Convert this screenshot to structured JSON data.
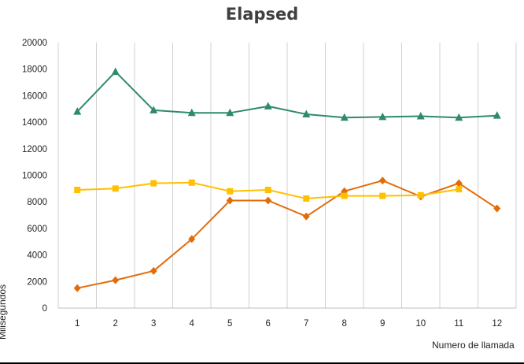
{
  "chart_data": {
    "type": "line",
    "title": "Elapsed",
    "xlabel": "Numero de llamada",
    "ylabel": "Milisegundos",
    "categories": [
      "1",
      "2",
      "3",
      "4",
      "5",
      "6",
      "7",
      "8",
      "9",
      "10",
      "11",
      "12"
    ],
    "ylim": [
      0,
      20000
    ],
    "yticks": [
      0,
      2000,
      4000,
      6000,
      8000,
      10000,
      12000,
      14000,
      16000,
      18000,
      20000
    ],
    "grid": "vertical",
    "series": [
      {
        "color": "#e36c0a",
        "marker": "diamond",
        "values": [
          1500,
          2100,
          2800,
          5200,
          8100,
          8100,
          6900,
          8800,
          9600,
          8400,
          9400,
          7500
        ]
      },
      {
        "color": "#ffc000",
        "marker": "square",
        "values": [
          8900,
          9000,
          9400,
          9450,
          8800,
          8900,
          8250,
          8450,
          8450,
          8500,
          8950,
          null
        ]
      },
      {
        "color": "#2e8b6a",
        "marker": "triangle",
        "values": [
          14800,
          17800,
          14900,
          14700,
          14700,
          15200,
          14600,
          14350,
          14400,
          14450,
          14350,
          14500
        ]
      }
    ]
  }
}
